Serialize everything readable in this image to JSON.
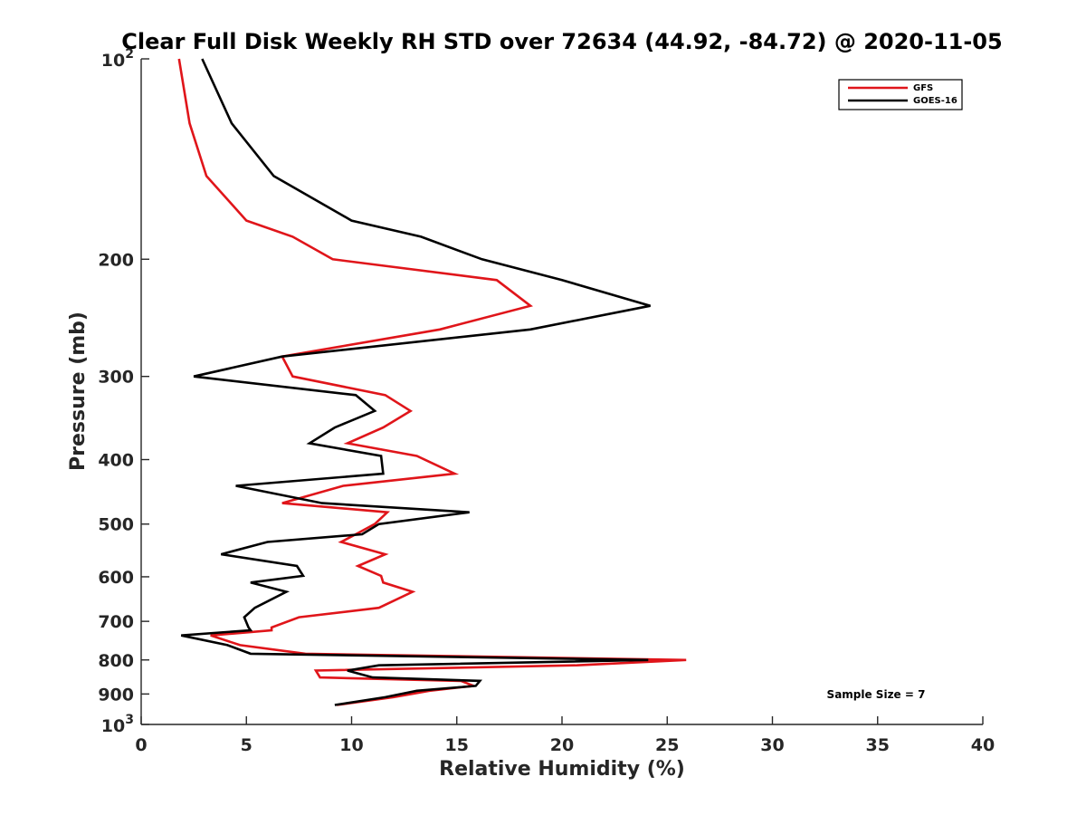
{
  "chart_data": {
    "type": "line",
    "title": "Clear Full Disk Weekly RH STD over 72634 (44.92, -84.72) @ 2020-11-05",
    "xlabel": "Relative Humidity (%)",
    "ylabel": "Pressure (mb)",
    "xlim": [
      0,
      40
    ],
    "ylim": [
      100,
      1000
    ],
    "yscale": "log",
    "yreversed": true,
    "x_ticks": [
      "0",
      "5",
      "10",
      "15",
      "20",
      "25",
      "30",
      "35",
      "40"
    ],
    "y_ticks": [
      {
        "value": 100,
        "base": "10",
        "exp": "2"
      },
      {
        "value": 200,
        "label": "200"
      },
      {
        "value": 300,
        "label": "300"
      },
      {
        "value": 400,
        "label": "400"
      },
      {
        "value": 500,
        "label": "500"
      },
      {
        "value": 600,
        "label": "600"
      },
      {
        "value": 700,
        "label": "700"
      },
      {
        "value": 800,
        "label": "800"
      },
      {
        "value": 900,
        "label": "900"
      },
      {
        "value": 1000,
        "base": "10",
        "exp": "3"
      }
    ],
    "legend_position": "top-right",
    "annotation": "Sample Size = 7",
    "series": [
      {
        "name": "GFS",
        "color": "#e0151a",
        "points": [
          [
            1.8,
            100
          ],
          [
            2.3,
            125
          ],
          [
            3.1,
            150
          ],
          [
            5.0,
            175
          ],
          [
            7.2,
            185
          ],
          [
            9.1,
            200
          ],
          [
            16.9,
            215
          ],
          [
            18.5,
            235
          ],
          [
            14.2,
            255
          ],
          [
            6.7,
            280
          ],
          [
            7.2,
            300
          ],
          [
            11.6,
            320
          ],
          [
            12.8,
            338
          ],
          [
            11.5,
            358
          ],
          [
            9.8,
            378
          ],
          [
            13.1,
            395
          ],
          [
            14.9,
            420
          ],
          [
            9.6,
            438
          ],
          [
            6.7,
            465
          ],
          [
            11.7,
            480
          ],
          [
            11.1,
            500
          ],
          [
            10.2,
            518
          ],
          [
            9.5,
            532
          ],
          [
            11.6,
            555
          ],
          [
            10.3,
            578
          ],
          [
            11.4,
            598
          ],
          [
            11.5,
            612
          ],
          [
            12.9,
            632
          ],
          [
            11.3,
            668
          ],
          [
            7.5,
            690
          ],
          [
            6.2,
            715
          ],
          [
            6.2,
            722
          ],
          [
            3.3,
            735
          ],
          [
            4.7,
            760
          ],
          [
            7.8,
            783
          ],
          [
            25.9,
            800
          ],
          [
            20.7,
            815
          ],
          [
            8.3,
            830
          ],
          [
            8.5,
            850
          ],
          [
            15.2,
            860
          ],
          [
            15.8,
            875
          ],
          [
            13.7,
            890
          ],
          [
            12.0,
            910
          ],
          [
            9.3,
            935
          ]
        ]
      },
      {
        "name": "GOES-16",
        "color": "#000000",
        "points": [
          [
            2.9,
            100
          ],
          [
            4.3,
            125
          ],
          [
            6.3,
            150
          ],
          [
            10.0,
            175
          ],
          [
            13.3,
            185
          ],
          [
            16.2,
            200
          ],
          [
            20.0,
            215
          ],
          [
            24.2,
            235
          ],
          [
            18.5,
            255
          ],
          [
            6.7,
            280
          ],
          [
            2.5,
            300
          ],
          [
            10.2,
            320
          ],
          [
            11.1,
            338
          ],
          [
            9.2,
            358
          ],
          [
            8.0,
            378
          ],
          [
            11.4,
            395
          ],
          [
            11.5,
            420
          ],
          [
            4.5,
            438
          ],
          [
            8.6,
            465
          ],
          [
            15.6,
            480
          ],
          [
            11.3,
            500
          ],
          [
            10.5,
            518
          ],
          [
            6.0,
            532
          ],
          [
            3.8,
            555
          ],
          [
            7.4,
            578
          ],
          [
            7.7,
            598
          ],
          [
            5.2,
            612
          ],
          [
            6.9,
            632
          ],
          [
            5.4,
            668
          ],
          [
            4.9,
            690
          ],
          [
            5.1,
            715
          ],
          [
            5.2,
            722
          ],
          [
            1.9,
            735
          ],
          [
            4.1,
            760
          ],
          [
            5.2,
            783
          ],
          [
            24.1,
            800
          ],
          [
            11.3,
            815
          ],
          [
            9.8,
            830
          ],
          [
            11.0,
            850
          ],
          [
            16.1,
            860
          ],
          [
            15.9,
            875
          ],
          [
            13.1,
            890
          ],
          [
            11.6,
            910
          ],
          [
            9.2,
            935
          ]
        ]
      }
    ]
  }
}
